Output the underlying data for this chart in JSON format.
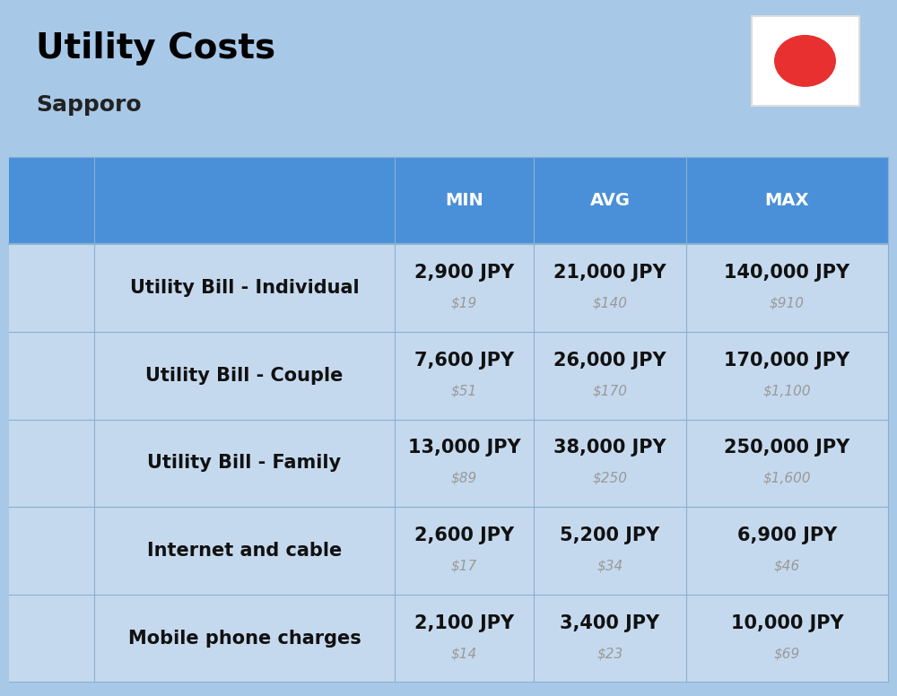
{
  "title": "Utility Costs",
  "subtitle": "Sapporo",
  "background_color": "#a8c8e8",
  "header_color": "#4a90d9",
  "header_text_color": "#ffffff",
  "row_color": "#c5d9ee",
  "cell_border_color": "#8ab0d0",
  "title_fontsize": 28,
  "subtitle_fontsize": 18,
  "header_labels": [
    "MIN",
    "AVG",
    "MAX"
  ],
  "rows": [
    {
      "label": "Utility Bill - Individual",
      "min_jpy": "2,900 JPY",
      "min_usd": "$19",
      "avg_jpy": "21,000 JPY",
      "avg_usd": "$140",
      "max_jpy": "140,000 JPY",
      "max_usd": "$910"
    },
    {
      "label": "Utility Bill - Couple",
      "min_jpy": "7,600 JPY",
      "min_usd": "$51",
      "avg_jpy": "26,000 JPY",
      "avg_usd": "$170",
      "max_jpy": "170,000 JPY",
      "max_usd": "$1,100"
    },
    {
      "label": "Utility Bill - Family",
      "min_jpy": "13,000 JPY",
      "min_usd": "$89",
      "avg_jpy": "38,000 JPY",
      "avg_usd": "$250",
      "max_jpy": "250,000 JPY",
      "max_usd": "$1,600"
    },
    {
      "label": "Internet and cable",
      "min_jpy": "2,600 JPY",
      "min_usd": "$17",
      "avg_jpy": "5,200 JPY",
      "avg_usd": "$34",
      "max_jpy": "6,900 JPY",
      "max_usd": "$46"
    },
    {
      "label": "Mobile phone charges",
      "min_jpy": "2,100 JPY",
      "min_usd": "$14",
      "avg_jpy": "3,400 JPY",
      "avg_usd": "$23",
      "max_jpy": "10,000 JPY",
      "max_usd": "$69"
    }
  ],
  "jpy_fontsize": 15,
  "usd_fontsize": 11,
  "label_fontsize": 15,
  "usd_color": "#999999",
  "flag_bg": "#ffffff",
  "flag_circle_color": "#e83030"
}
